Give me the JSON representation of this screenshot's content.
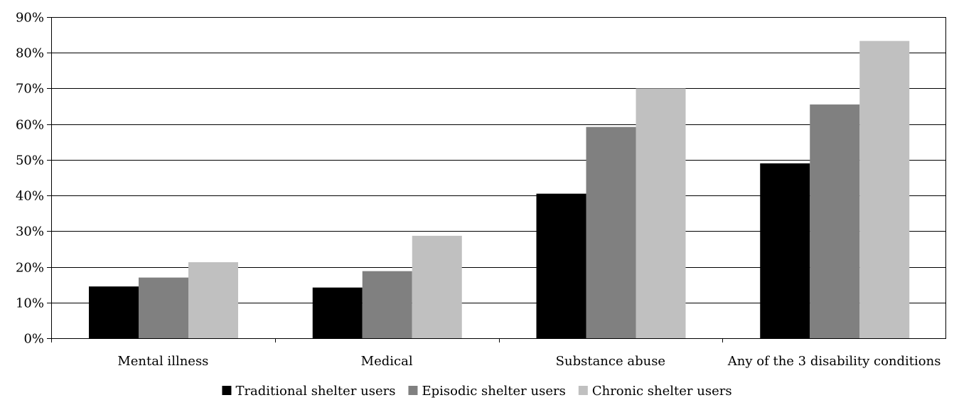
{
  "chart_data": {
    "type": "bar",
    "categories": [
      "Mental illness",
      "Medical",
      "Substance abuse",
      "Any of the 3 disability conditions"
    ],
    "series": [
      {
        "name": "Traditional shelter users",
        "color": "#000000",
        "values": [
          14.5,
          14.2,
          40.5,
          49.0
        ]
      },
      {
        "name": "Episodic shelter users",
        "color": "#808080",
        "values": [
          17.0,
          18.8,
          59.2,
          65.5
        ]
      },
      {
        "name": "Chronic shelter users",
        "color": "#c0c0c0",
        "values": [
          21.3,
          28.7,
          70.0,
          83.3
        ]
      }
    ],
    "ylim": [
      0,
      90
    ],
    "yticks": [
      0,
      10,
      20,
      30,
      40,
      50,
      60,
      70,
      80,
      90
    ],
    "ytick_suffix": "%",
    "grid": true,
    "legend_position": "bottom",
    "title": "",
    "xlabel": "",
    "ylabel": ""
  }
}
